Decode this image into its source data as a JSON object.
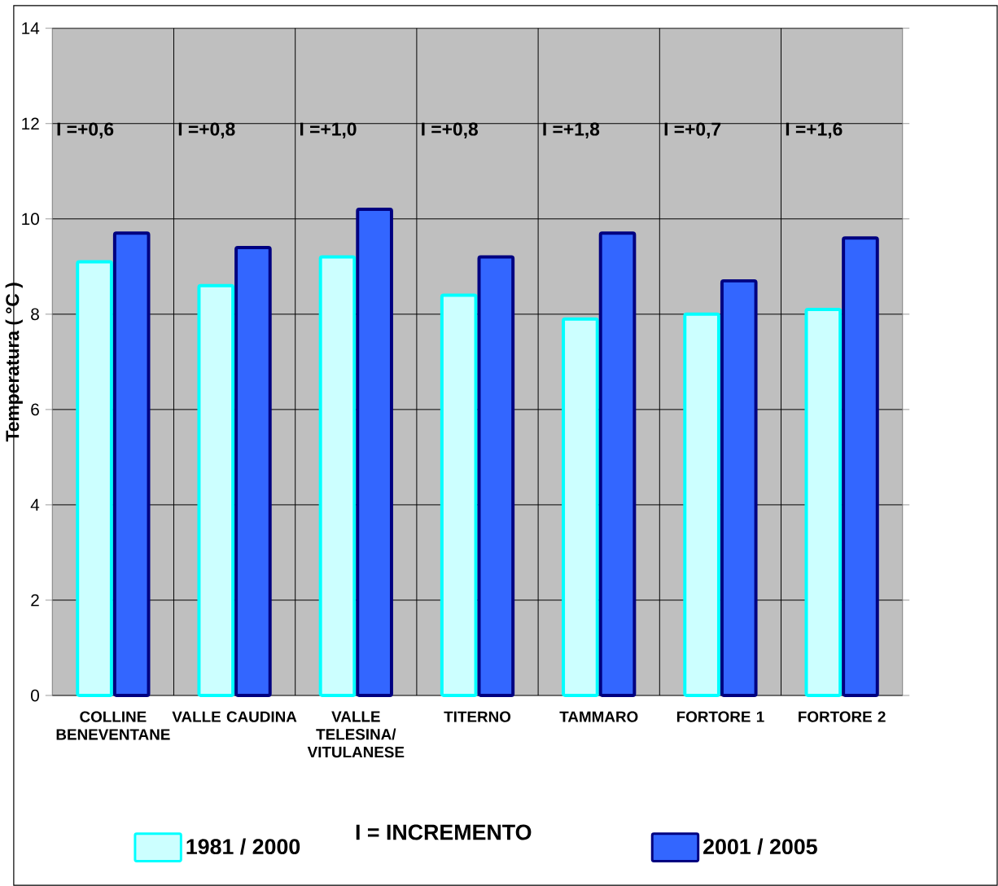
{
  "chart_data": {
    "type": "bar",
    "ylabel": "Temperatura ( °C )",
    "categories": [
      "COLLINE BENEVENTANE",
      "VALLE CAUDINA",
      "VALLE TELESINA/ VITULANESE",
      "TITERNO",
      "TAMMARO",
      "FORTORE 1",
      "FORTORE 2"
    ],
    "series": [
      {
        "name": "1981 / 2000",
        "color": "#ccffff",
        "values": [
          9.1,
          8.6,
          9.2,
          8.4,
          7.9,
          8.0,
          8.1
        ]
      },
      {
        "name": "2001 / 2005",
        "color": "#3366ff",
        "values": [
          9.7,
          9.4,
          10.2,
          9.2,
          9.7,
          8.7,
          9.6
        ]
      }
    ],
    "ylim": [
      0,
      14
    ],
    "yticks": [
      0,
      2,
      4,
      6,
      8,
      10,
      12,
      14
    ],
    "grid": true,
    "legend": "bottom",
    "annotations": [
      "I =+0,6",
      "I =+0,8",
      "I =+1,0",
      "I =+0,8",
      "I =+1,8",
      "I =+0,7",
      "I =+1,6",
      "I = INCREMENTO"
    ]
  }
}
